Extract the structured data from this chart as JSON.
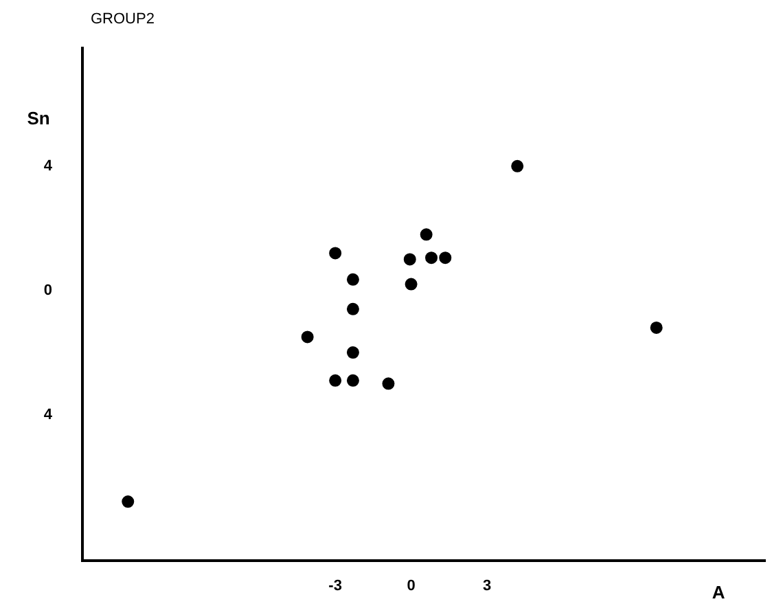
{
  "chart_data": {
    "type": "scatter",
    "title": "GROUP2",
    "xlabel": "A",
    "ylabel": "Sn",
    "xlim": [
      -13,
      14
    ],
    "ylim": [
      -8.7,
      7.8
    ],
    "xticks": [
      -3,
      0,
      3
    ],
    "yticks": [
      {
        "value": 4,
        "label": "4"
      },
      0,
      {
        "value": -4,
        "label": "4"
      }
    ],
    "grid": false,
    "marker": "circle",
    "series": [
      {
        "color": "#000000",
        "x": [
          -11.2,
          -3.0,
          -2.3,
          -2.3,
          -4.1,
          -2.3,
          -3.0,
          -2.3,
          -0.9,
          -0.05,
          0,
          0.6,
          0.8,
          1.35,
          4.2,
          9.7
        ],
        "values": [
          -6.8,
          1.2,
          0.35,
          -0.6,
          -1.5,
          -2.0,
          -2.9,
          -2.9,
          -3.0,
          1.0,
          0.2,
          1.8,
          1.05,
          1.05,
          4.0,
          -1.2
        ]
      }
    ]
  }
}
